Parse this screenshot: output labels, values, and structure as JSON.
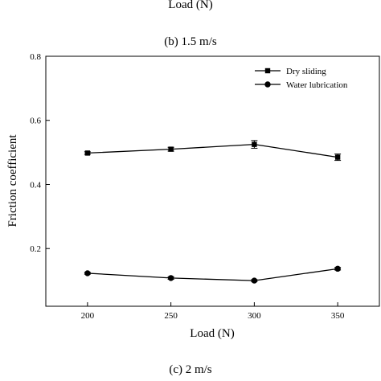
{
  "top_label": "Load (N)",
  "caption_b": "(b) 1.5 m/s",
  "caption_c": "(c) 2 m/s",
  "chart_data": {
    "type": "line",
    "title": "",
    "xlabel": "Load (N)",
    "ylabel": "Friction coefficient",
    "categories": [
      "200",
      "250",
      "300",
      "350"
    ],
    "x": [
      200,
      250,
      300,
      350
    ],
    "xlim": [
      175,
      375
    ],
    "ylim": [
      0.02,
      0.8
    ],
    "yticks": [
      0.2,
      0.4,
      0.6,
      0.8
    ],
    "ytick_labels": [
      "0.2",
      "0.4",
      "0.6",
      "0.8"
    ],
    "grid": false,
    "legend_position": "top-right",
    "series": [
      {
        "name": "Dry sliding",
        "marker": "square",
        "values": [
          0.498,
          0.51,
          0.525,
          0.485
        ],
        "errors": [
          0.004,
          0.006,
          0.012,
          0.01
        ]
      },
      {
        "name": "Water lubrication",
        "marker": "circle",
        "values": [
          0.123,
          0.108,
          0.1,
          0.137
        ],
        "errors": [
          0.003,
          0.004,
          0.003,
          0.004
        ]
      }
    ]
  }
}
